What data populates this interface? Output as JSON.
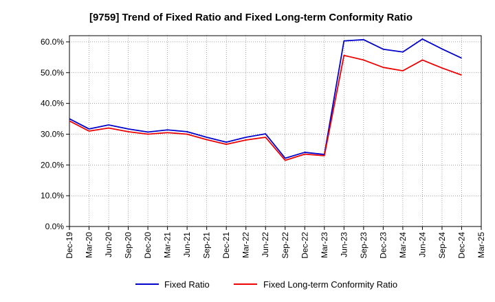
{
  "chart_data": {
    "type": "line",
    "title": "[9759]  Trend of Fixed Ratio and Fixed Long-term Conformity Ratio",
    "xlabel": "",
    "ylabel": "",
    "categories": [
      "Dec-19",
      "Mar-20",
      "Jun-20",
      "Sep-20",
      "Dec-20",
      "Mar-21",
      "Jun-21",
      "Sep-21",
      "Dec-21",
      "Mar-22",
      "Jun-22",
      "Sep-22",
      "Dec-22",
      "Mar-23",
      "Jun-23",
      "Sep-23",
      "Dec-23",
      "Mar-24",
      "Jun-24",
      "Sep-24",
      "Dec-24",
      "Mar-25"
    ],
    "y_ticks": [
      "0.0%",
      "10.0%",
      "20.0%",
      "30.0%",
      "40.0%",
      "50.0%",
      "60.0%"
    ],
    "ylim": [
      0,
      62
    ],
    "grid": true,
    "legend_position": "bottom",
    "series": [
      {
        "name": "Fixed Ratio",
        "color": "#0000cc",
        "values": [
          35.0,
          31.7,
          33.0,
          31.7,
          30.7,
          31.4,
          30.8,
          29.0,
          27.4,
          29.0,
          30.1,
          22.2,
          24.1,
          23.4,
          60.3,
          60.7,
          57.6,
          56.7,
          60.9,
          57.7,
          54.7,
          null
        ]
      },
      {
        "name": "Fixed Long-term Conformity Ratio",
        "color": "#ee0000",
        "values": [
          34.3,
          31.0,
          32.0,
          30.8,
          30.0,
          30.5,
          30.0,
          28.2,
          26.7,
          28.1,
          29.0,
          21.5,
          23.5,
          23.0,
          55.6,
          54.1,
          51.7,
          50.6,
          54.1,
          51.5,
          49.2,
          null
        ]
      }
    ]
  }
}
